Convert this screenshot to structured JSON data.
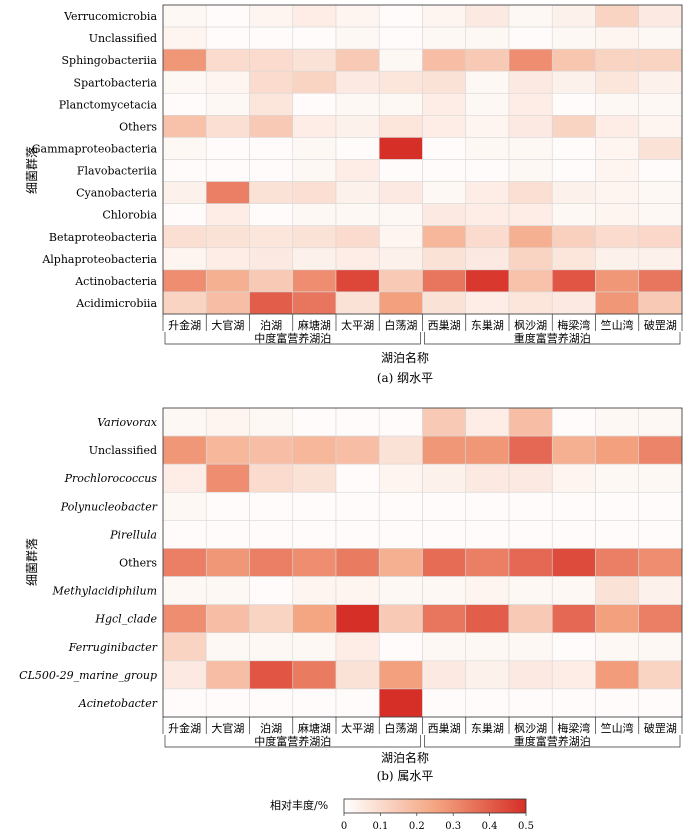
{
  "figure": {
    "ylabel": "细菌群落",
    "xlabel": "湖泊名称",
    "colorbar_title": "相对丰度/%",
    "colorbar_ticks": [
      "0",
      "0.1",
      "0.2",
      "0.3",
      "0.4",
      "0.5"
    ],
    "groups": [
      "中度富营养湖泊",
      "重度富营养湖泊"
    ],
    "color_scale": {
      "low": "#ffffff",
      "mid": "#f4a582",
      "high": "#d62f27"
    }
  },
  "chart_data": [
    {
      "type": "heatmap",
      "caption": "(a)  纲水平",
      "x_categories": [
        "升金湖",
        "大官湖",
        "泊湖",
        "麻塘湖",
        "太平湖",
        "白荡湖",
        "西巢湖",
        "东巢湖",
        "枫沙湖",
        "梅梁湾",
        "竺山湾",
        "破罡湖"
      ],
      "x_groups": [
        {
          "label": "中度富营养湖泊",
          "span": 6
        },
        {
          "label": "重度富营养湖泊",
          "span": 6
        }
      ],
      "y_categories": [
        "Verrucomicrobia",
        "Unclassified",
        "Sphingobacteriia",
        "Spartobacteria",
        "Planctomycetacia",
        "Others",
        "Gammaproteobacteria",
        "Flavobacteriia",
        "Cyanobacteria",
        "Chlorobia",
        "Betaproteobacteria",
        "Alphaproteobacteria",
        "Actinobacteria",
        "Acidimicrobiia"
      ],
      "y_italic": false,
      "values": [
        [
          0.02,
          0.01,
          0.03,
          0.05,
          0.03,
          0.01,
          0.03,
          0.06,
          0.02,
          0.04,
          0.12,
          0.06
        ],
        [
          0.03,
          0.01,
          0.01,
          0.01,
          0.02,
          0.01,
          0.02,
          0.02,
          0.01,
          0.02,
          0.03,
          0.02
        ],
        [
          0.28,
          0.1,
          0.1,
          0.08,
          0.15,
          0.02,
          0.18,
          0.15,
          0.3,
          0.16,
          0.12,
          0.12
        ],
        [
          0.02,
          0.03,
          0.1,
          0.12,
          0.06,
          0.07,
          0.08,
          0.02,
          0.06,
          0.04,
          0.07,
          0.04
        ],
        [
          0.01,
          0.02,
          0.07,
          0.01,
          0.02,
          0.02,
          0.05,
          0.02,
          0.05,
          0.01,
          0.02,
          0.02
        ],
        [
          0.17,
          0.09,
          0.15,
          0.05,
          0.04,
          0.07,
          0.05,
          0.03,
          0.06,
          0.12,
          0.05,
          0.03
        ],
        [
          0.02,
          0.01,
          0.01,
          0.02,
          0.01,
          0.52,
          0.01,
          0.02,
          0.02,
          0.01,
          0.03,
          0.08
        ],
        [
          0.01,
          0.01,
          0.01,
          0.02,
          0.05,
          0.01,
          0.01,
          0.01,
          0.02,
          0.01,
          0.03,
          0.01
        ],
        [
          0.04,
          0.33,
          0.08,
          0.09,
          0.04,
          0.06,
          0.02,
          0.05,
          0.09,
          0.04,
          0.03,
          0.02
        ],
        [
          0.01,
          0.05,
          0.01,
          0.02,
          0.02,
          0.02,
          0.06,
          0.05,
          0.05,
          0.02,
          0.03,
          0.02
        ],
        [
          0.09,
          0.08,
          0.07,
          0.08,
          0.1,
          0.03,
          0.2,
          0.1,
          0.22,
          0.13,
          0.1,
          0.11
        ],
        [
          0.03,
          0.05,
          0.06,
          0.04,
          0.05,
          0.04,
          0.08,
          0.06,
          0.12,
          0.07,
          0.04,
          0.04
        ],
        [
          0.3,
          0.22,
          0.15,
          0.3,
          0.45,
          0.15,
          0.35,
          0.48,
          0.17,
          0.42,
          0.28,
          0.35
        ],
        [
          0.12,
          0.18,
          0.4,
          0.35,
          0.08,
          0.26,
          0.08,
          0.05,
          0.07,
          0.06,
          0.28,
          0.15
        ]
      ]
    },
    {
      "type": "heatmap",
      "caption": "(b)  属水平",
      "x_categories": [
        "升金湖",
        "大官湖",
        "泊湖",
        "麻塘湖",
        "太平湖",
        "白荡湖",
        "西巢湖",
        "东巢湖",
        "枫沙湖",
        "梅梁湾",
        "竺山湾",
        "破罡湖"
      ],
      "x_groups": [
        {
          "label": "中度富营养湖泊",
          "span": 6
        },
        {
          "label": "重度富营养湖泊",
          "span": 6
        }
      ],
      "y_categories": [
        "Variovorax",
        "Unclassified",
        "Prochlorococcus",
        "Polynucleobacter",
        "Pirellula",
        "Others",
        "Methylacidiphilum",
        "Hgcl_clade",
        "Ferruginibacter",
        "CL500-29_marine_group",
        "Acinetobacter"
      ],
      "y_italic": [
        true,
        false,
        true,
        true,
        true,
        false,
        true,
        true,
        true,
        true,
        true
      ],
      "values": [
        [
          0.02,
          0.03,
          0.02,
          0.01,
          0.01,
          0.01,
          0.15,
          0.05,
          0.18,
          0.01,
          0.02,
          0.02
        ],
        [
          0.28,
          0.2,
          0.18,
          0.2,
          0.18,
          0.08,
          0.28,
          0.28,
          0.38,
          0.22,
          0.26,
          0.32
        ],
        [
          0.05,
          0.3,
          0.1,
          0.08,
          0.01,
          0.03,
          0.04,
          0.06,
          0.06,
          0.03,
          0.02,
          0.02
        ],
        [
          0.02,
          0.01,
          0.01,
          0.01,
          0.01,
          0.01,
          0.01,
          0.01,
          0.01,
          0.01,
          0.01,
          0.01
        ],
        [
          0.01,
          0.01,
          0.01,
          0.01,
          0.01,
          0.01,
          0.01,
          0.01,
          0.01,
          0.01,
          0.01,
          0.01
        ],
        [
          0.33,
          0.28,
          0.33,
          0.3,
          0.34,
          0.22,
          0.37,
          0.33,
          0.38,
          0.44,
          0.33,
          0.3
        ],
        [
          0.02,
          0.02,
          0.01,
          0.03,
          0.03,
          0.02,
          0.02,
          0.03,
          0.02,
          0.02,
          0.08,
          0.04
        ],
        [
          0.3,
          0.18,
          0.12,
          0.25,
          0.5,
          0.15,
          0.35,
          0.4,
          0.15,
          0.38,
          0.26,
          0.33
        ],
        [
          0.12,
          0.02,
          0.02,
          0.02,
          0.05,
          0.01,
          0.02,
          0.02,
          0.02,
          0.01,
          0.02,
          0.02
        ],
        [
          0.06,
          0.18,
          0.42,
          0.34,
          0.08,
          0.26,
          0.06,
          0.04,
          0.06,
          0.05,
          0.27,
          0.12
        ],
        [
          0.01,
          0.01,
          0.01,
          0.01,
          0.01,
          0.52,
          0.01,
          0.01,
          0.01,
          0.01,
          0.01,
          0.01
        ]
      ]
    }
  ]
}
